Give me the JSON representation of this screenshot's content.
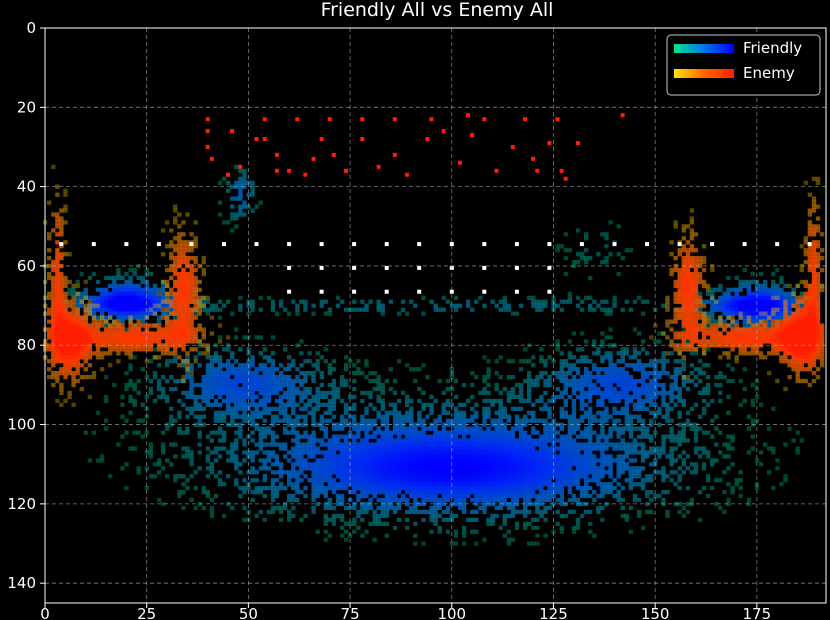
{
  "chart_data": {
    "type": "heatmap",
    "title": "Friendly All vs Enemy All",
    "xlabel": "",
    "ylabel": "",
    "xlim": [
      0,
      192
    ],
    "ylim": [
      145,
      0
    ],
    "x_ticks": [
      0,
      25,
      50,
      75,
      100,
      125,
      150,
      175
    ],
    "y_ticks": [
      0,
      20,
      40,
      60,
      80,
      100,
      120,
      140
    ],
    "grid": true,
    "legend_position": "top-right",
    "series": [
      {
        "name": "Friendly",
        "colormap": [
          "#00e68c",
          "#0077e6",
          "#0000ff"
        ],
        "blobs": [
          {
            "x": 20,
            "y": 69,
            "w": 8,
            "h": 4,
            "density": 1.0
          },
          {
            "x": 175,
            "y": 70,
            "w": 8,
            "h": 4,
            "density": 1.0
          },
          {
            "x": 100,
            "y": 112,
            "w": 34,
            "h": 8,
            "density": 0.9
          },
          {
            "x": 48,
            "y": 89,
            "w": 14,
            "h": 6,
            "density": 0.6
          },
          {
            "x": 142,
            "y": 89,
            "w": 14,
            "h": 6,
            "density": 0.6
          },
          {
            "x": 96,
            "y": 70,
            "w": 62,
            "h": 1.5,
            "density": 0.35
          },
          {
            "x": 95,
            "y": 100,
            "w": 48,
            "h": 9,
            "density": 0.25
          },
          {
            "x": 48,
            "y": 42,
            "w": 3,
            "h": 5,
            "density": 0.5
          },
          {
            "x": 135,
            "y": 56,
            "w": 6,
            "h": 6,
            "density": 0.2
          }
        ]
      },
      {
        "name": "Enemy",
        "colormap": [
          "#ffe600",
          "#ff6400",
          "#ff1e00"
        ],
        "blobs": [
          {
            "x": 6,
            "y": 79,
            "w": 4,
            "h": 7,
            "density": 1.0
          },
          {
            "x": 22,
            "y": 78,
            "w": 10,
            "h": 3,
            "density": 0.85
          },
          {
            "x": 34,
            "y": 66,
            "w": 3,
            "h": 10,
            "density": 0.85
          },
          {
            "x": 186,
            "y": 78,
            "w": 4,
            "h": 7,
            "density": 1.0
          },
          {
            "x": 172,
            "y": 78,
            "w": 10,
            "h": 3,
            "density": 0.85
          },
          {
            "x": 158,
            "y": 66,
            "w": 3,
            "h": 10,
            "density": 0.85
          },
          {
            "x": 3,
            "y": 60,
            "w": 1.5,
            "h": 12,
            "density": 0.7
          },
          {
            "x": 189,
            "y": 60,
            "w": 1.5,
            "h": 12,
            "density": 0.7
          }
        ],
        "points": [
          [
            40,
            23
          ],
          [
            40,
            26
          ],
          [
            40,
            30
          ],
          [
            41,
            33
          ],
          [
            46,
            26
          ],
          [
            48,
            35
          ],
          [
            52,
            28
          ],
          [
            54,
            23
          ],
          [
            54,
            28
          ],
          [
            57,
            32
          ],
          [
            57,
            36
          ],
          [
            62,
            23
          ],
          [
            64,
            37
          ],
          [
            68,
            28
          ],
          [
            70,
            23
          ],
          [
            71,
            32
          ],
          [
            74,
            36
          ],
          [
            78,
            28
          ],
          [
            78,
            23
          ],
          [
            82,
            35
          ],
          [
            86,
            23
          ],
          [
            86,
            32
          ],
          [
            89,
            37
          ],
          [
            94,
            28
          ],
          [
            95,
            23
          ],
          [
            98,
            26
          ],
          [
            102,
            34
          ],
          [
            105,
            27
          ],
          [
            108,
            23
          ],
          [
            111,
            36
          ],
          [
            115,
            30
          ],
          [
            118,
            23
          ],
          [
            120,
            33
          ],
          [
            124,
            29
          ],
          [
            126,
            23
          ],
          [
            127,
            36
          ],
          [
            131,
            29
          ],
          [
            142,
            22
          ],
          [
            45,
            37
          ],
          [
            60,
            36
          ],
          [
            66,
            33
          ],
          [
            104,
            22
          ],
          [
            121,
            36
          ],
          [
            128,
            38
          ]
        ]
      }
    ],
    "markers": {
      "color": "#ffffff",
      "rows": [
        {
          "y": 54.5,
          "x": [
            4,
            12,
            20,
            28,
            36,
            44,
            52,
            60,
            68,
            76,
            84,
            92,
            100,
            108,
            116,
            124,
            132,
            140,
            148,
            156,
            164,
            172,
            180,
            188
          ]
        },
        {
          "y": 60.5,
          "x": [
            60,
            68,
            76,
            84,
            92,
            100,
            108,
            116,
            124
          ]
        },
        {
          "y": 66.5,
          "x": [
            60,
            68,
            76,
            84,
            92,
            100,
            108,
            116,
            124
          ]
        }
      ]
    }
  }
}
